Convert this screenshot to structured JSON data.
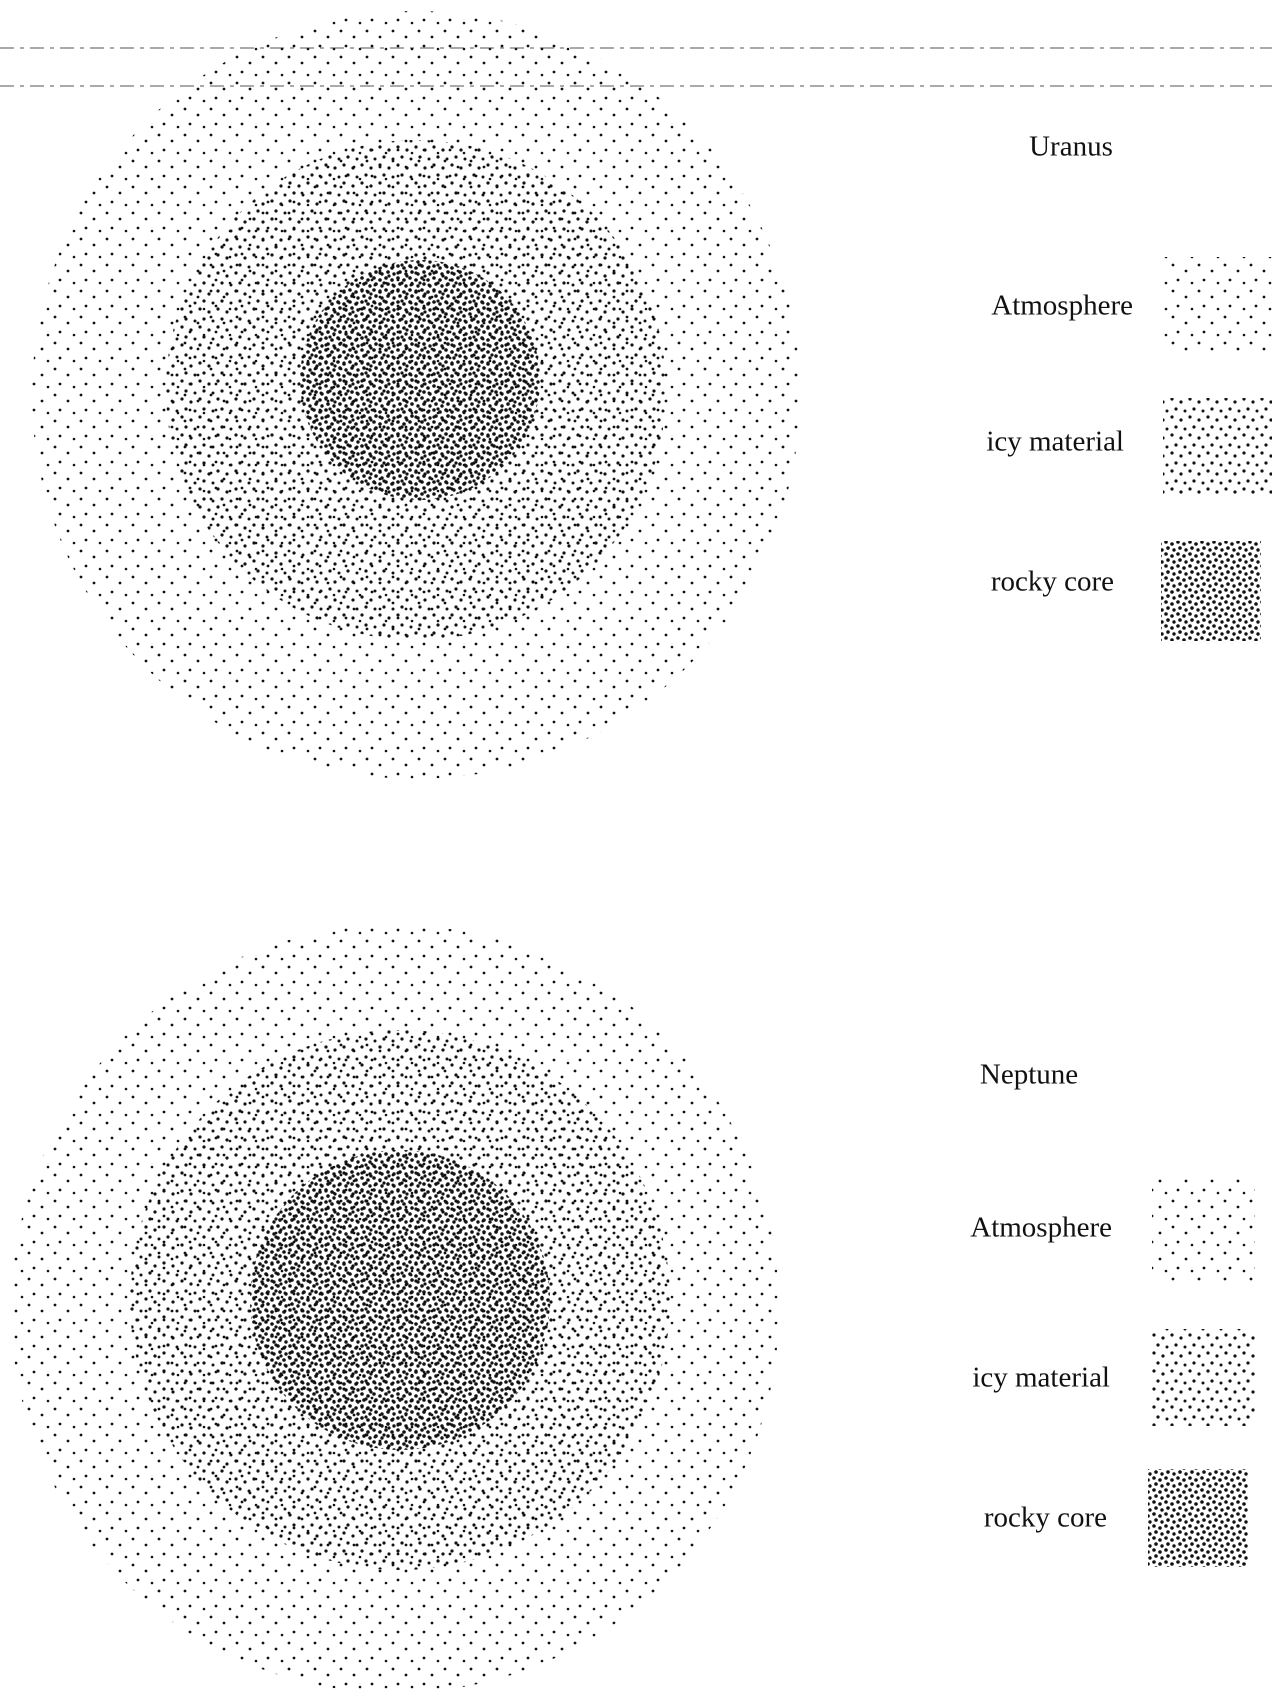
{
  "diagrams": [
    {
      "title": "Uranus",
      "legend": [
        "Atmosphere",
        "icy material",
        "rocky core"
      ]
    },
    {
      "title": "Neptune",
      "legend": [
        "Atmosphere",
        "icy material",
        "rocky core"
      ]
    }
  ]
}
